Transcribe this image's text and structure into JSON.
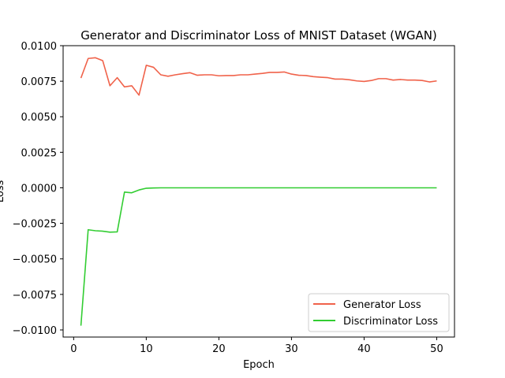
{
  "chart_data": {
    "type": "line",
    "title": "Generator and Discriminator Loss of MNIST Dataset (WGAN)",
    "xlabel": "Epoch",
    "ylabel": "Loss",
    "xlim": [
      -1.45,
      52.45
    ],
    "ylim": [
      -0.0105,
      0.01
    ],
    "xticks": [
      0,
      10,
      20,
      30,
      40,
      50
    ],
    "xtick_labels": [
      "0",
      "10",
      "20",
      "30",
      "40",
      "50"
    ],
    "yticks": [
      -0.01,
      -0.0075,
      -0.005,
      -0.0025,
      0.0,
      0.0025,
      0.005,
      0.0075,
      0.01
    ],
    "ytick_labels": [
      "−0.0100",
      "−0.0075",
      "−0.0050",
      "−0.0025",
      "0.0000",
      "0.0025",
      "0.0050",
      "0.0075",
      "0.0100"
    ],
    "grid": false,
    "legend_position": "lower-right",
    "x": [
      1,
      2,
      3,
      4,
      5,
      6,
      7,
      8,
      9,
      10,
      11,
      12,
      13,
      14,
      15,
      16,
      17,
      18,
      19,
      20,
      21,
      22,
      23,
      24,
      25,
      26,
      27,
      28,
      29,
      30,
      31,
      32,
      33,
      34,
      35,
      36,
      37,
      38,
      39,
      40,
      41,
      42,
      43,
      44,
      45,
      46,
      47,
      48,
      49,
      50
    ],
    "series": [
      {
        "name": "Generator Loss",
        "color": "#f0624a",
        "values": [
          0.00772,
          0.0091,
          0.00915,
          0.00895,
          0.00718,
          0.00775,
          0.0071,
          0.00718,
          0.00652,
          0.00862,
          0.00848,
          0.00795,
          0.00785,
          0.00795,
          0.00803,
          0.0081,
          0.00792,
          0.00795,
          0.00795,
          0.00788,
          0.0079,
          0.0079,
          0.00795,
          0.00795,
          0.008,
          0.00805,
          0.00812,
          0.00812,
          0.00815,
          0.008,
          0.00792,
          0.0079,
          0.00782,
          0.00778,
          0.00775,
          0.00765,
          0.00765,
          0.0076,
          0.00752,
          0.00748,
          0.00755,
          0.00768,
          0.00768,
          0.00758,
          0.00762,
          0.00758,
          0.00758,
          0.00755,
          0.00745,
          0.00752
        ]
      },
      {
        "name": "Discriminator Loss",
        "color": "#32cd32",
        "values": [
          -0.0097,
          -0.00295,
          -0.00302,
          -0.00305,
          -0.00312,
          -0.0031,
          -0.0003,
          -0.00035,
          -0.00015,
          -3e-05,
          -1e-05,
          0.0,
          0.0,
          0.0,
          0.0,
          0.0,
          0.0,
          0.0,
          0.0,
          0.0,
          0.0,
          0.0,
          0.0,
          0.0,
          0.0,
          0.0,
          0.0,
          0.0,
          0.0,
          0.0,
          0.0,
          0.0,
          0.0,
          0.0,
          0.0,
          0.0,
          0.0,
          0.0,
          0.0,
          0.0,
          0.0,
          0.0,
          0.0,
          0.0,
          0.0,
          0.0,
          0.0,
          0.0,
          0.0,
          0.0
        ]
      }
    ]
  }
}
